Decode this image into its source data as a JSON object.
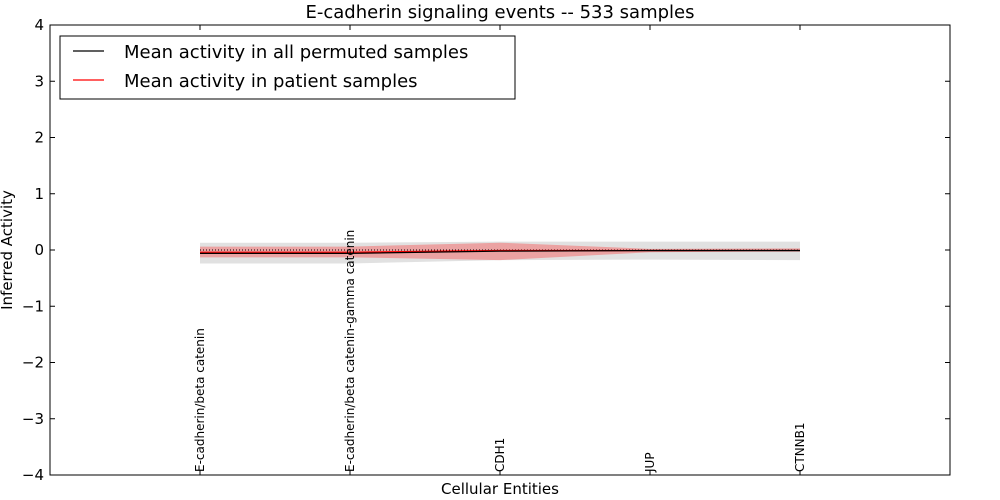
{
  "chart_data": {
    "type": "line",
    "title": "E-cadherin signaling events -- 533 samples",
    "xlabel": "Cellular Entities",
    "ylabel": "Inferred Activity",
    "ylim": [
      -4,
      4
    ],
    "yticks": [
      4,
      3,
      2,
      1,
      0,
      -1,
      -2,
      -3,
      -4
    ],
    "ytick_labels": [
      "4",
      "3",
      "2",
      "1",
      "0",
      "−1",
      "−2",
      "−3",
      "−4"
    ],
    "xlim": [
      -1,
      5
    ],
    "categories": [
      "E-cadherin/beta catenin",
      "E-cadherin/beta catenin-gamma catenin",
      "CDH1",
      "JUP",
      "CTNNB1"
    ],
    "series": [
      {
        "name": "Mean activity in all permuted samples",
        "color": "#000000",
        "values": [
          -0.06,
          -0.06,
          -0.02,
          -0.01,
          -0.01
        ],
        "band_low": [
          -0.24,
          -0.24,
          -0.18,
          -0.17,
          -0.18
        ],
        "band_high": [
          0.13,
          0.13,
          0.15,
          0.15,
          0.15
        ],
        "band_color": "#c8c8c8"
      },
      {
        "name": "Mean activity in patient samples",
        "color": "#ff0000",
        "values": [
          -0.04,
          -0.04,
          -0.01,
          -0.01,
          -0.01
        ],
        "band_low": [
          -0.13,
          -0.13,
          -0.18,
          -0.04,
          -0.02
        ],
        "band_high": [
          0.06,
          0.06,
          0.13,
          0.02,
          0.03
        ],
        "band_color": "#f08080"
      }
    ],
    "reference_line": 0,
    "legend_location": "top-left"
  }
}
